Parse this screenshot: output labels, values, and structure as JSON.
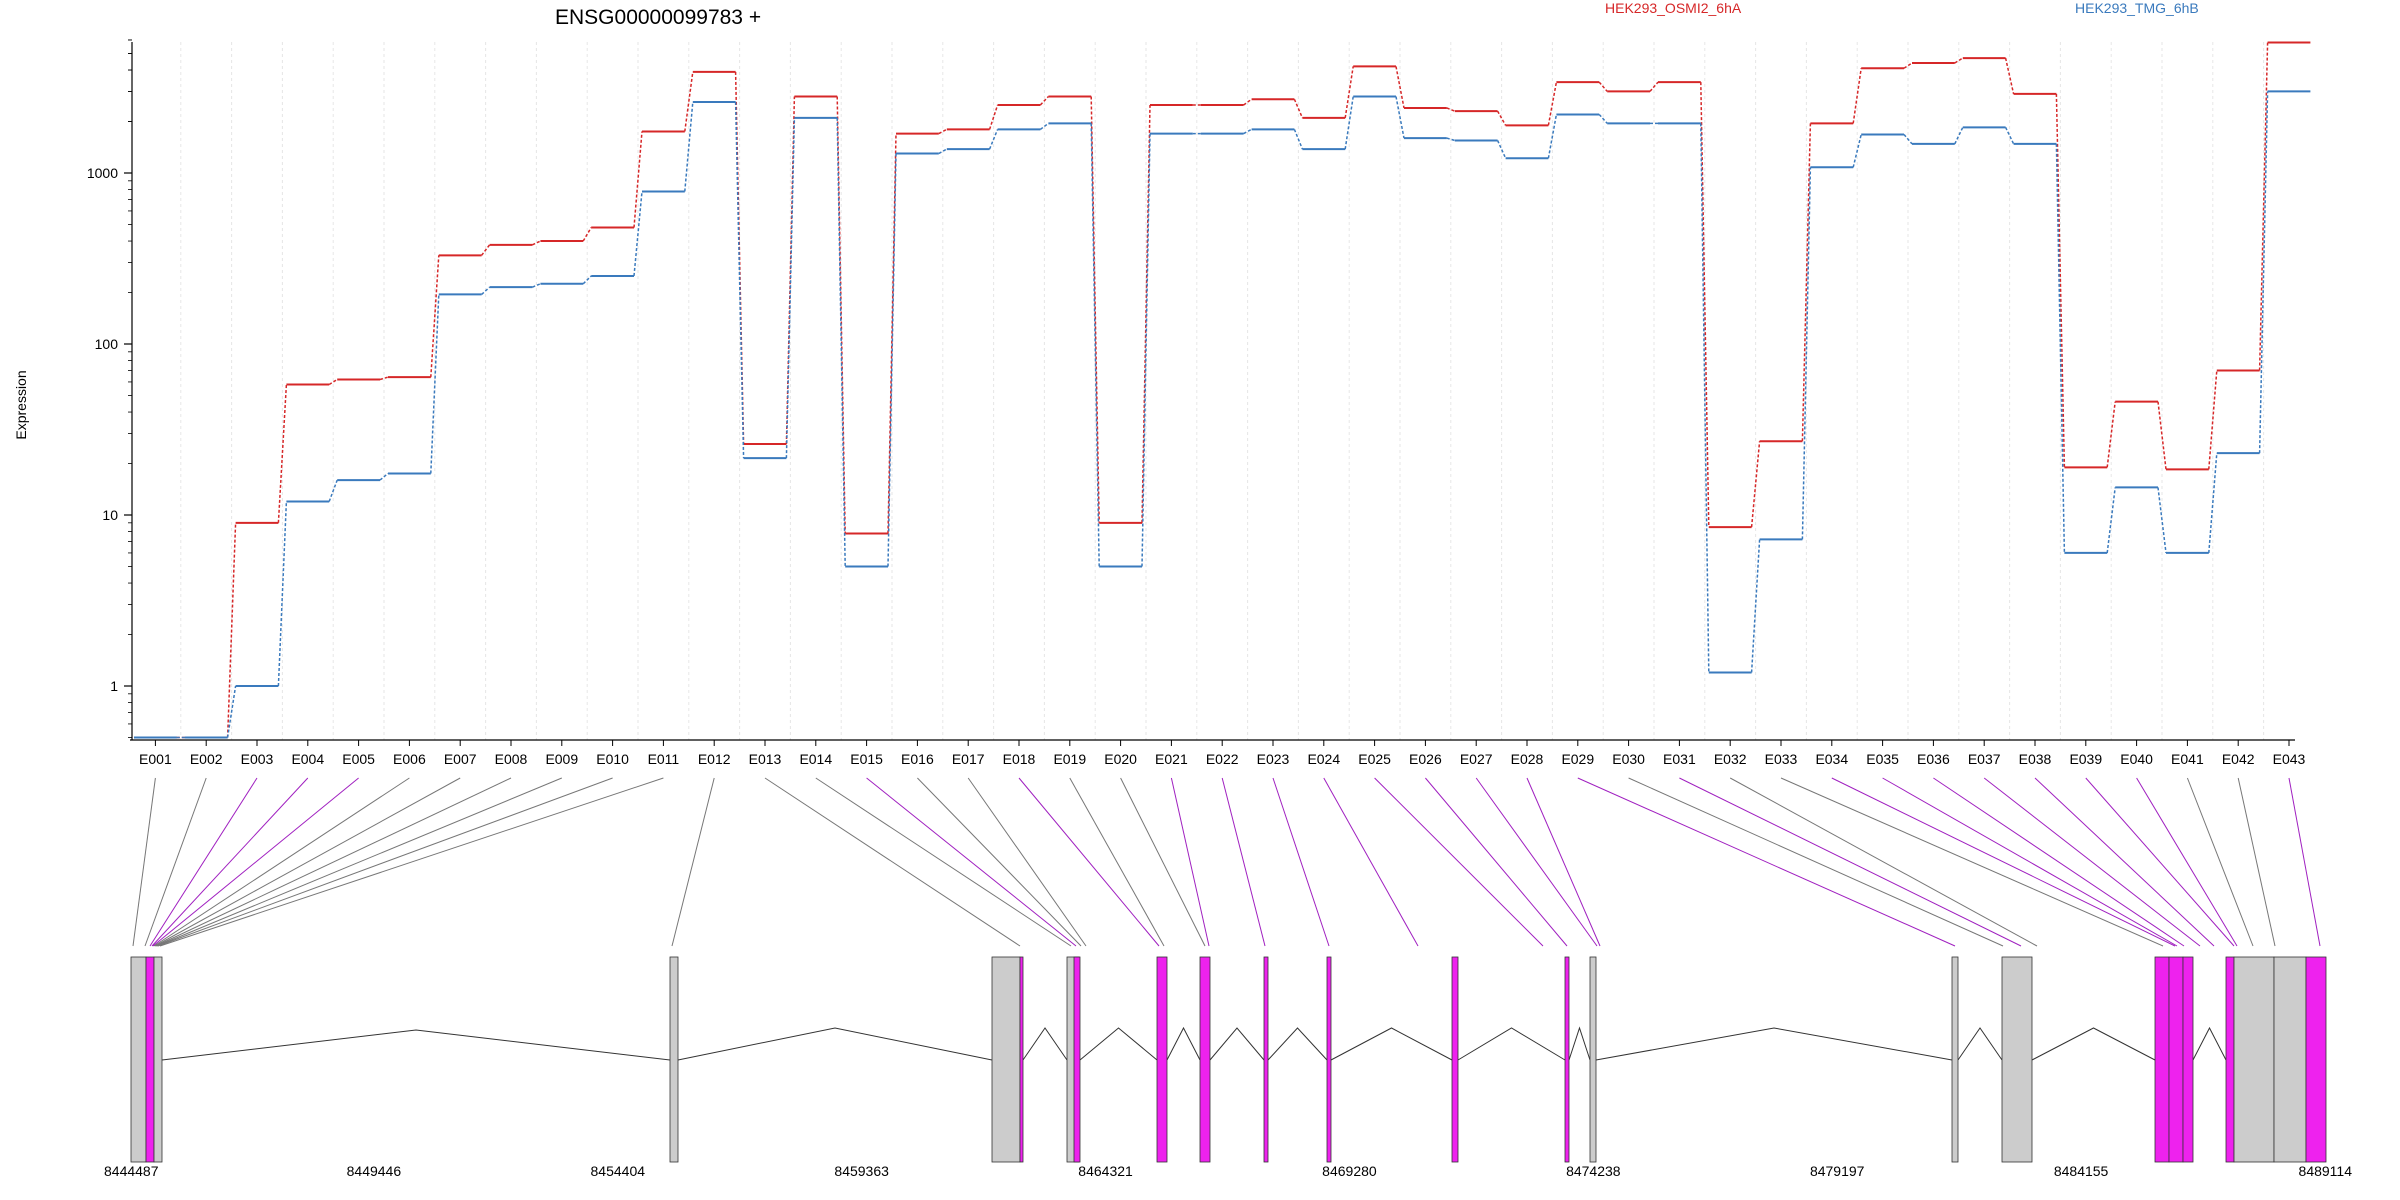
{
  "chart_data": {
    "type": "line",
    "title": "ENSG00000099783 +",
    "ylabel": "Expression",
    "xlabel": "",
    "yscale": "log",
    "ylim": [
      0.5,
      6000
    ],
    "yticks": [
      1,
      10,
      100,
      1000
    ],
    "grid": "vertical-light",
    "legend_placement": "top-right",
    "categories": [
      "E001",
      "E002",
      "E003",
      "E004",
      "E005",
      "E006",
      "E007",
      "E008",
      "E009",
      "E010",
      "E011",
      "E012",
      "E013",
      "E014",
      "E015",
      "E016",
      "E017",
      "E018",
      "E019",
      "E020",
      "E021",
      "E022",
      "E023",
      "E024",
      "E025",
      "E026",
      "E027",
      "E028",
      "E029",
      "E030",
      "E031",
      "E032",
      "E033",
      "E034",
      "E035",
      "E036",
      "E037",
      "E038",
      "E039",
      "E040",
      "E041",
      "E042",
      "E043"
    ],
    "series": [
      {
        "name": "HEK293_OSMI2_6hA",
        "color": "#d62728",
        "values": [
          0.5,
          0.5,
          9,
          58,
          62,
          64,
          330,
          380,
          400,
          480,
          1750,
          3900,
          26,
          2800,
          7.8,
          1700,
          1800,
          2500,
          2800,
          9,
          2500,
          2500,
          2700,
          2100,
          4200,
          2400,
          2300,
          1900,
          3400,
          3000,
          3400,
          8.5,
          27,
          1950,
          4100,
          4400,
          4700,
          2900,
          19,
          46,
          18.5,
          70,
          5800
        ]
      },
      {
        "name": "HEK293_TMG_6hB",
        "color": "#3a7abd",
        "values": [
          0.5,
          0.5,
          1,
          12,
          16,
          17.5,
          195,
          215,
          225,
          250,
          780,
          2600,
          21.5,
          2100,
          5,
          1300,
          1380,
          1800,
          1950,
          5,
          1700,
          1700,
          1800,
          1380,
          2800,
          1600,
          1550,
          1220,
          2200,
          1950,
          1950,
          1.2,
          7.2,
          1080,
          1680,
          1480,
          1850,
          1480,
          6,
          14.5,
          6,
          23,
          3000
        ]
      }
    ],
    "gene_model": {
      "coordinate_ticks": [
        "8444487",
        "8449446",
        "8454404",
        "8459363",
        "8464321",
        "8469280",
        "8474238",
        "8479197",
        "8484155",
        "8489114"
      ],
      "exon_colors": {
        "normal": "#cccccc",
        "highlight": "#ee22ee"
      }
    }
  }
}
